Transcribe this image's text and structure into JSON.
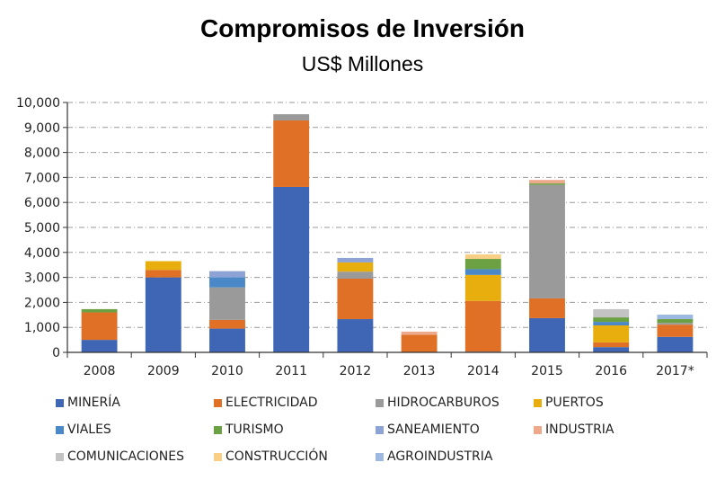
{
  "chart_data": {
    "type": "bar",
    "stacked": true,
    "title": "Compromisos de Inversión",
    "subtitle": "US$ Millones",
    "xlabel": "",
    "ylabel": "",
    "ylim": [
      0,
      10000
    ],
    "yticks": [
      0,
      1000,
      2000,
      3000,
      4000,
      5000,
      6000,
      7000,
      8000,
      9000,
      10000
    ],
    "ytick_labels": [
      "0",
      "1,000",
      "2,000",
      "3,000",
      "4,000",
      "5,000",
      "6,000",
      "7,000",
      "8,000",
      "9,000",
      "10,000"
    ],
    "grid": true,
    "legend_position": "bottom",
    "categories": [
      "2008",
      "2009",
      "2010",
      "2011",
      "2012",
      "2013",
      "2014",
      "2015",
      "2016",
      "2017*"
    ],
    "series": [
      {
        "name": "MINERÍA",
        "color": "#3F66B5",
        "values": [
          500,
          3000,
          950,
          6620,
          1330,
          0,
          30,
          1370,
          210,
          620
        ]
      },
      {
        "name": "ELECTRICIDAD",
        "color": "#E07026",
        "values": [
          1100,
          300,
          350,
          2660,
          1620,
          700,
          2030,
          790,
          190,
          490
        ]
      },
      {
        "name": "HIDROCARBUROS",
        "color": "#9A9A9A",
        "values": [
          0,
          0,
          1300,
          250,
          280,
          0,
          0,
          4540,
          0,
          70
        ]
      },
      {
        "name": "PUERTOS",
        "color": "#E8AE0E",
        "values": [
          0,
          350,
          0,
          0,
          370,
          0,
          1040,
          0,
          680,
          0
        ]
      },
      {
        "name": "VIALES",
        "color": "#4A88C7",
        "values": [
          0,
          0,
          400,
          0,
          0,
          0,
          230,
          0,
          140,
          0
        ]
      },
      {
        "name": "TURISMO",
        "color": "#6BA043",
        "values": [
          130,
          0,
          0,
          0,
          0,
          0,
          410,
          60,
          180,
          150
        ]
      },
      {
        "name": "SANEAMIENTO",
        "color": "#8DA3D6",
        "values": [
          0,
          0,
          250,
          0,
          180,
          0,
          0,
          0,
          0,
          0
        ]
      },
      {
        "name": "INDUSTRIA",
        "color": "#EEA98C",
        "values": [
          0,
          0,
          0,
          0,
          0,
          130,
          0,
          140,
          0,
          0
        ]
      },
      {
        "name": "COMUNICACIONES",
        "color": "#C3C3C3",
        "values": [
          0,
          0,
          0,
          0,
          0,
          0,
          0,
          0,
          330,
          0
        ]
      },
      {
        "name": "CONSTRUCCIÓN",
        "color": "#F9CF86",
        "values": [
          0,
          0,
          0,
          0,
          0,
          0,
          180,
          0,
          0,
          0
        ]
      },
      {
        "name": "AGROINDUSTRIA",
        "color": "#9DB9E2",
        "values": [
          0,
          0,
          0,
          0,
          0,
          0,
          0,
          0,
          0,
          180
        ]
      }
    ]
  }
}
